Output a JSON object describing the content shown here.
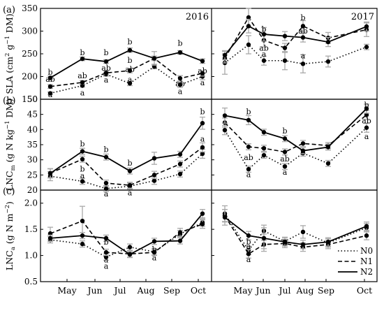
{
  "figure": {
    "legend": [
      {
        "label": "N0",
        "style": "dotted"
      },
      {
        "label": "N1",
        "style": "dashed"
      },
      {
        "label": "N2",
        "style": "solid"
      }
    ],
    "x_tick_labels": [
      "May",
      "Jun",
      "Jul",
      "Aug",
      "Sep",
      "Oct"
    ]
  },
  "chart_data": [
    {
      "type": "line",
      "panel_label": "(a)",
      "ylabel_base": "SLA (cm",
      "ylabel_sup1": "2",
      "ylabel_mid": " g",
      "ylabel_sup2": "−1",
      "ylabel_end": " DM)",
      "ylim": [
        150,
        350
      ],
      "yticks": [
        150,
        200,
        250,
        300,
        350
      ],
      "ytick_labels": [
        "150",
        "200",
        "250",
        "300",
        "350"
      ],
      "grid": false,
      "subpanels": [
        {
          "year": "2016",
          "x": [
            1,
            2,
            3,
            4,
            5,
            6,
            7
          ],
          "series": [
            {
              "name": "N0",
              "values": [
                163,
                180,
                205,
                185,
                222,
                182,
                200
              ],
              "err": [
                3,
                3,
                4,
                5,
                5,
                6,
                7
              ]
            },
            {
              "name": "N1",
              "values": [
                178,
                187,
                208,
                213,
                240,
                196,
                207
              ],
              "err": [
                4,
                4,
                4,
                5,
                5,
                6,
                6
              ]
            },
            {
              "name": "N2",
              "values": [
                197,
                239,
                233,
                258,
                240,
                253,
                234
              ],
              "err": [
                4,
                4,
                4,
                5,
                15,
                4,
                5
              ]
            }
          ],
          "annotations": [
            {
              "x": 1,
              "y": 210,
              "text": "b"
            },
            {
              "x": 1,
              "y": 195,
              "text": "ab"
            },
            {
              "x": 1,
              "y": 161,
              "text": "a"
            },
            {
              "x": 2,
              "y": 253,
              "text": "b"
            },
            {
              "x": 2,
              "y": 202,
              "text": "ab"
            },
            {
              "x": 2,
              "y": 165,
              "text": "a"
            },
            {
              "x": 3,
              "y": 253,
              "text": "b"
            },
            {
              "x": 3,
              "y": 219,
              "text": "ab"
            },
            {
              "x": 3,
              "y": 193,
              "text": "a"
            },
            {
              "x": 4,
              "y": 277,
              "text": "b"
            },
            {
              "x": 4,
              "y": 236,
              "text": "b"
            },
            {
              "x": 4,
              "y": 216,
              "text": "ab"
            },
            {
              "x": 4,
              "y": 194,
              "text": "a"
            },
            {
              "x": 6,
              "y": 274,
              "text": "b"
            },
            {
              "x": 6,
              "y": 185,
              "text": "ab"
            },
            {
              "x": 6,
              "y": 168,
              "text": "a"
            },
            {
              "x": 7,
              "y": 213,
              "text": "ab"
            },
            {
              "x": 7,
              "y": 187,
              "text": "a"
            }
          ]
        },
        {
          "year": "2017",
          "x": [
            1,
            2,
            3,
            4,
            5,
            6,
            7
          ],
          "series": [
            {
              "name": "N0",
              "values": [
                230,
                270,
                235,
                235,
                228,
                233,
                265
              ],
              "err": [
                25,
                20,
                10,
                20,
                20,
                12,
                6
              ]
            },
            {
              "name": "N1",
              "values": [
                240,
                330,
                280,
                263,
                311,
                285,
                303
              ],
              "err": [
                10,
                20,
                15,
                10,
                12,
                12,
                15
              ]
            },
            {
              "name": "N2",
              "values": [
                247,
                311,
                293,
                289,
                286,
                276,
                310
              ],
              "err": [
                10,
                15,
                15,
                10,
                10,
                10,
                10
              ]
            }
          ],
          "annotations": [
            {
              "x": 3,
              "y": 305,
              "text": "b"
            },
            {
              "x": 3,
              "y": 263,
              "text": "ab"
            },
            {
              "x": 3,
              "y": 250,
              "text": "a"
            },
            {
              "x": 5,
              "y": 330,
              "text": "b"
            },
            {
              "x": 5,
              "y": 301,
              "text": "ab"
            },
            {
              "x": 5,
              "y": 246,
              "text": "a"
            }
          ]
        }
      ]
    },
    {
      "type": "line",
      "panel_label": "(b)",
      "ylabel_base": "LNC",
      "ylabel_sub": "m",
      "ylabel_rest": " (g N kg",
      "ylabel_sup": "−1",
      "ylabel_end": " DM)",
      "ylim": [
        20,
        50
      ],
      "yticks": [
        20,
        25,
        30,
        35,
        40,
        45,
        50
      ],
      "ytick_labels": [
        "20",
        "25",
        "30",
        "35",
        "40",
        "45",
        "50"
      ],
      "grid": false,
      "subpanels": [
        {
          "year": "",
          "x": [
            1,
            2,
            3,
            4,
            5,
            6,
            7
          ],
          "series": [
            {
              "name": "N0",
              "values": [
                24.6,
                22.9,
                20.5,
                21.3,
                23.1,
                25.3,
                32.0
              ],
              "err": [
                1.5,
                1.0,
                1.0,
                1.0,
                1.2,
                1.0,
                1.5
              ]
            },
            {
              "name": "N1",
              "values": [
                25.6,
                30.2,
                22.3,
                21.6,
                25.0,
                28.6,
                34.1
              ],
              "err": [
                1.5,
                1.0,
                1.0,
                1.0,
                1.2,
                1.0,
                1.5
              ]
            },
            {
              "name": "N2",
              "values": [
                25.5,
                32.8,
                30.9,
                26.3,
                30.5,
                31.8,
                42.1
              ],
              "err": [
                1.5,
                1.0,
                1.0,
                1.0,
                2.0,
                1.0,
                2.0
              ]
            }
          ],
          "annotations": [
            {
              "x": 2,
              "y": 35.3,
              "text": "b"
            },
            {
              "x": 2,
              "y": 27.0,
              "text": "b"
            },
            {
              "x": 2,
              "y": 24.9,
              "text": "a"
            },
            {
              "x": 3,
              "y": 33.5,
              "text": "b"
            },
            {
              "x": 3,
              "y": 18.9,
              "text": "a"
            },
            {
              "x": 4,
              "y": 29.0,
              "text": "b"
            },
            {
              "x": 4,
              "y": 19.2,
              "text": "a"
            },
            {
              "x": 7,
              "y": 46.0,
              "text": "b"
            },
            {
              "x": 7,
              "y": 37.0,
              "text": "a"
            }
          ]
        },
        {
          "year": "",
          "x": [
            1,
            2,
            3,
            4,
            5,
            6,
            7
          ],
          "series": [
            {
              "name": "N0",
              "values": [
                39.8,
                26.9,
                31.5,
                27.8,
                32.2,
                28.8,
                40.6
              ],
              "err": [
                1.5,
                1.0,
                1.0,
                1.0,
                1.0,
                1.0,
                1.5
              ]
            },
            {
              "name": "N1",
              "values": [
                42.3,
                34.3,
                33.8,
                32.6,
                35.4,
                34.7,
                44.8
              ],
              "err": [
                1.5,
                1.0,
                1.0,
                1.0,
                1.0,
                1.0,
                1.5
              ]
            },
            {
              "name": "N2",
              "values": [
                44.6,
                43.1,
                39.1,
                37.0,
                33.0,
                34.2,
                46.9
              ],
              "err": [
                2.5,
                1.5,
                1.0,
                1.0,
                1.0,
                1.0,
                1.5
              ]
            }
          ],
          "annotations": [
            {
              "x": 2,
              "y": 46.0,
              "text": "b"
            },
            {
              "x": 2,
              "y": 30.9,
              "text": "ab"
            },
            {
              "x": 2,
              "y": 25.2,
              "text": "a"
            },
            {
              "x": 4,
              "y": 39.6,
              "text": "b"
            },
            {
              "x": 4,
              "y": 30.4,
              "text": "ab"
            },
            {
              "x": 4,
              "y": 26.0,
              "text": "a"
            },
            {
              "x": 7,
              "y": 48.1,
              "text": "b"
            },
            {
              "x": 7,
              "y": 43.0,
              "text": "ab"
            },
            {
              "x": 7,
              "y": 37.8,
              "text": "a"
            }
          ]
        }
      ]
    },
    {
      "type": "line",
      "panel_label": "(c)",
      "ylabel_base": "LNC",
      "ylabel_sub": "a",
      "ylabel_rest": " (g N m",
      "ylabel_sup": "−2",
      "ylabel_end": ")",
      "ylim": [
        0.5,
        2.25
      ],
      "yticks": [
        0.5,
        1.0,
        1.5,
        2.0
      ],
      "ytick_labels": [
        "0.5",
        "1.0",
        "1.5",
        "2.0"
      ],
      "grid": false,
      "subpanels": [
        {
          "year": "",
          "x": [
            1,
            2,
            3,
            4,
            5,
            6,
            7
          ],
          "series": [
            {
              "name": "N0",
              "values": [
                1.3,
                1.22,
                0.97,
                1.16,
                1.07,
                1.41,
                1.63
              ],
              "err": [
                0.06,
                0.06,
                0.06,
                0.06,
                0.06,
                0.07,
                0.07
              ]
            },
            {
              "name": "N1",
              "values": [
                1.42,
                1.66,
                1.06,
                1.03,
                1.06,
                1.44,
                1.6
              ],
              "err": [
                0.12,
                0.28,
                0.06,
                0.06,
                0.06,
                0.08,
                0.08
              ]
            },
            {
              "name": "N2",
              "values": [
                1.33,
                1.38,
                1.33,
                1.02,
                1.27,
                1.28,
                1.8
              ],
              "err": [
                0.06,
                0.06,
                0.06,
                0.06,
                0.06,
                0.06,
                0.08
              ]
            }
          ],
          "annotations": [
            {
              "x": 3,
              "y": 1.26,
              "text": "b"
            },
            {
              "x": 3,
              "y": 0.92,
              "text": "a"
            },
            {
              "x": 3,
              "y": 0.8,
              "text": "a"
            },
            {
              "x": 5,
              "y": 1.12,
              "text": "b"
            },
            {
              "x": 5,
              "y": 0.96,
              "text": "a"
            }
          ]
        },
        {
          "year": "",
          "x": [
            1,
            2,
            3,
            4,
            5,
            6,
            7
          ],
          "series": [
            {
              "name": "N0",
              "values": [
                1.8,
                1.1,
                1.47,
                1.27,
                1.45,
                1.24,
                1.53
              ],
              "err": [
                0.15,
                0.08,
                0.06,
                0.08,
                0.12,
                0.08,
                0.08
              ]
            },
            {
              "name": "N1",
              "values": [
                1.76,
                1.03,
                1.21,
                1.23,
                1.16,
                1.21,
                1.38
              ],
              "err": [
                0.12,
                0.08,
                0.08,
                0.08,
                0.08,
                0.08,
                0.08
              ]
            },
            {
              "name": "N2",
              "values": [
                1.73,
                1.38,
                1.33,
                1.26,
                1.21,
                1.26,
                1.56
              ],
              "err": [
                0.15,
                0.08,
                0.25,
                0.08,
                0.08,
                0.08,
                0.08
              ]
            }
          ],
          "annotations": [
            {
              "x": 2,
              "y": 1.27,
              "text": "b"
            },
            {
              "x": 2,
              "y": 1.18,
              "text": "a"
            },
            {
              "x": 2,
              "y": 0.93,
              "text": "a"
            }
          ]
        }
      ]
    }
  ]
}
